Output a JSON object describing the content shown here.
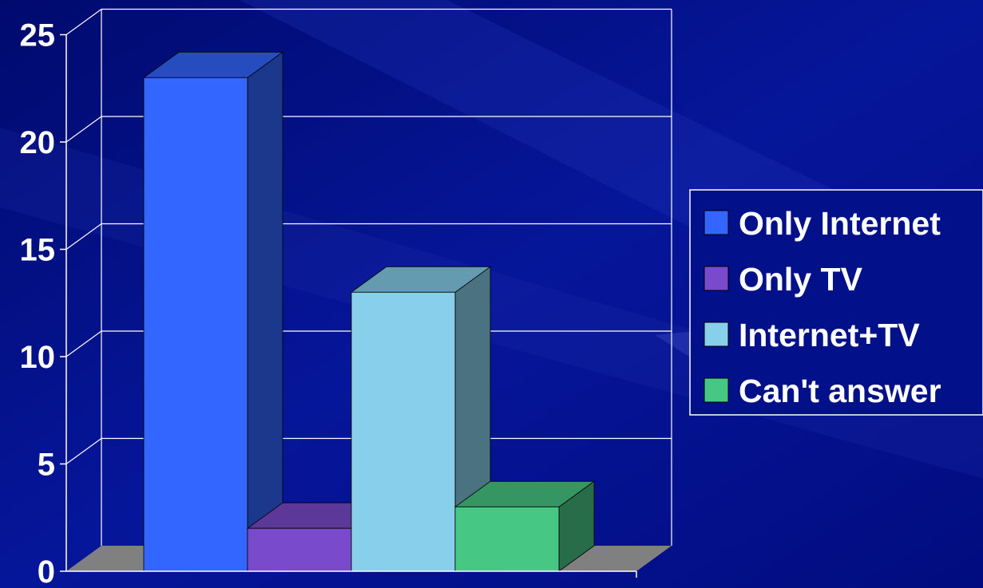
{
  "chart_data": {
    "type": "bar",
    "title": "",
    "xlabel": "",
    "ylabel": "",
    "ylim": [
      0,
      25
    ],
    "yticks": [
      0,
      5,
      10,
      15,
      20,
      25
    ],
    "grid": true,
    "three_d": true,
    "legend_position": "right",
    "series": [
      {
        "name": "Only Internet",
        "value": 23,
        "color": "#3366ff"
      },
      {
        "name": "Only TV",
        "value": 2,
        "color": "#7a4acc"
      },
      {
        "name": "Internet+TV",
        "value": 13,
        "color": "#87cfea"
      },
      {
        "name": "Can't answer",
        "value": 3,
        "color": "#46c784"
      }
    ]
  },
  "colors": {
    "background": "#02108a",
    "floor": "#808080",
    "grid": "#ffffff",
    "text": "#ffffff"
  }
}
